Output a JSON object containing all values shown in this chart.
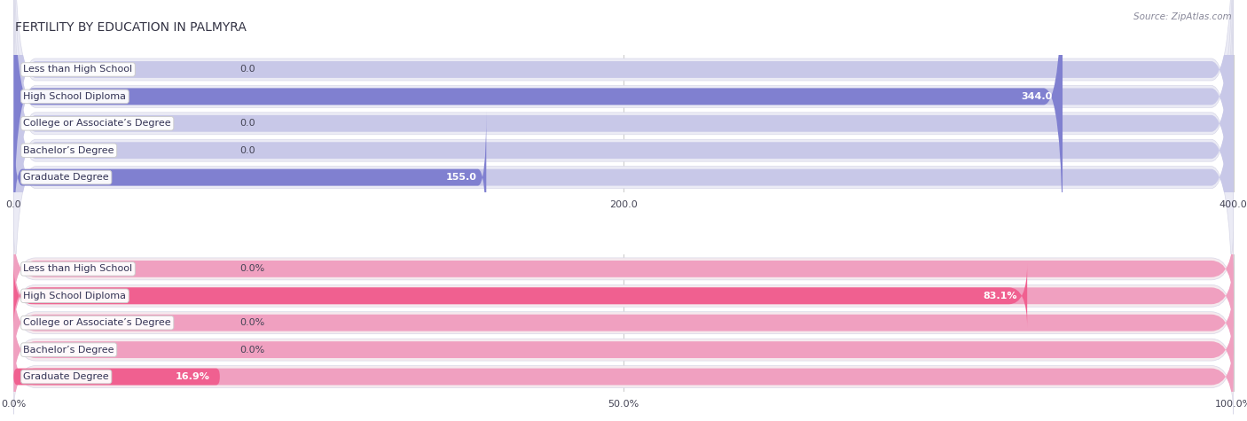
{
  "title": "FERTILITY BY EDUCATION IN PALMYRA",
  "source": "Source: ZipAtlas.com",
  "top_chart": {
    "categories": [
      "Less than High School",
      "High School Diploma",
      "College or Associate’s Degree",
      "Bachelor’s Degree",
      "Graduate Degree"
    ],
    "values": [
      0.0,
      344.0,
      0.0,
      0.0,
      155.0
    ],
    "bar_color": "#8080d0",
    "bar_bg_color": "#c8c8e8",
    "row_bg_color": "#ebebf5",
    "xlim": [
      0,
      400
    ],
    "xticks": [
      0.0,
      200.0,
      400.0
    ],
    "xticklabels": [
      "0.0",
      "200.0",
      "400.0"
    ]
  },
  "bottom_chart": {
    "categories": [
      "Less than High School",
      "High School Diploma",
      "College or Associate’s Degree",
      "Bachelor’s Degree",
      "Graduate Degree"
    ],
    "values": [
      0.0,
      83.1,
      0.0,
      0.0,
      16.9
    ],
    "bar_color": "#f06090",
    "bar_bg_color": "#f0a0c0",
    "row_bg_color": "#f5eaee",
    "xlim": [
      0,
      100
    ],
    "xticks": [
      0.0,
      50.0,
      100.0
    ],
    "xticklabels": [
      "0.0%",
      "50.0%",
      "100.0%"
    ]
  },
  "title_fontsize": 10,
  "label_fontsize": 8,
  "value_fontsize": 8,
  "tick_fontsize": 8,
  "source_fontsize": 7.5
}
